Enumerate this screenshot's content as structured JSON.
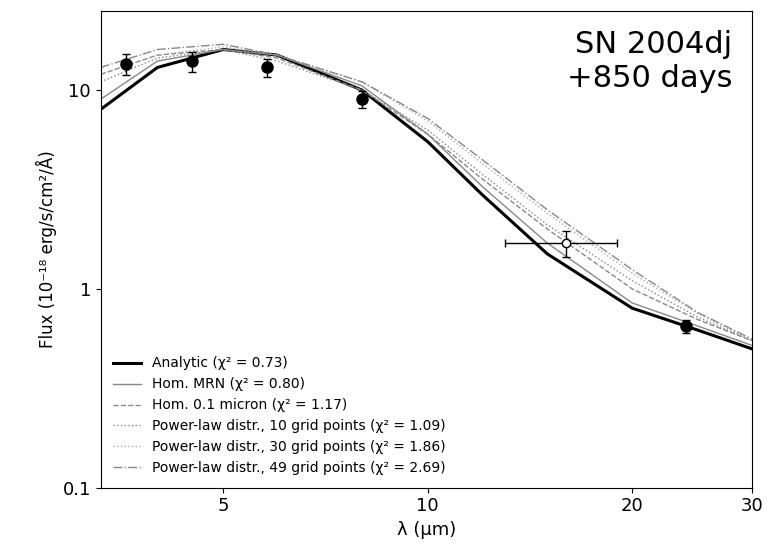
{
  "chart_data": {
    "type": "line",
    "annotation": "SN 2004dj\n+850 days",
    "x_label": "λ (μm)",
    "y_label": "Flux (10⁻¹⁸ erg/s/cm²/Å)",
    "log": true,
    "xlim": [
      3.3,
      30
    ],
    "xticks": [
      5,
      10,
      20,
      30
    ],
    "ylim": [
      0.1,
      25
    ],
    "yticks": [
      0.1,
      1,
      10
    ],
    "legend": "lower left",
    "x": [
      3.3,
      4,
      5,
      6,
      8,
      10,
      12,
      15,
      20,
      25,
      30
    ],
    "series": [
      {
        "name": "Analytic (χ² = 0.73)",
        "color": "#000000",
        "line_style": "solid",
        "values": [
          8,
          13,
          16,
          15,
          10,
          5.5,
          3.0,
          1.5,
          0.8,
          0.62,
          0.5
        ]
      },
      {
        "name": "Hom. MRN (χ² = 0.80)",
        "color": "#888888",
        "line_style": "solid",
        "values": [
          9,
          14,
          16,
          15,
          10.5,
          6.0,
          3.3,
          1.7,
          0.85,
          0.65,
          0.52
        ]
      },
      {
        "name": "Hom. 0.1 micron (χ² = 1.17)",
        "color": "#888888",
        "line_style": "dashed",
        "values": [
          12,
          15,
          16,
          14.5,
          10,
          6.0,
          3.6,
          2.0,
          1.0,
          0.7,
          0.55
        ]
      },
      {
        "name": "Power-law distr., 10 grid points (χ² = 1.09)",
        "color": "#888888",
        "line_style": "dotted",
        "values": [
          11,
          14.5,
          16,
          14,
          10,
          6.3,
          3.8,
          2.1,
          1.1,
          0.72,
          0.55
        ]
      },
      {
        "name": "Power-law distr., 30 grid points (χ² = 1.86)",
        "color": "#aaaaaa",
        "line_style": "dotted",
        "values": [
          12,
          15,
          16.5,
          15,
          11,
          7.0,
          4.3,
          2.4,
          1.2,
          0.75,
          0.55
        ]
      },
      {
        "name": "Power-law distr., 49 grid points (χ² = 2.69)",
        "color": "#888888",
        "line_style": "dashdot",
        "values": [
          13,
          16,
          17,
          15,
          11,
          7.2,
          4.5,
          2.5,
          1.25,
          0.76,
          0.56
        ]
      }
    ],
    "measurements": [
      {
        "marker": "filled",
        "color": "#000000",
        "x": [
          3.6,
          4.5,
          5.8,
          8.0,
          24
        ],
        "values": [
          13.5,
          14,
          13,
          9,
          0.65
        ],
        "yerr": [
          1.6,
          1.6,
          1.4,
          0.9,
          0.05
        ],
        "xerr_low": [
          0,
          0,
          0,
          0,
          0
        ],
        "xerr_high": [
          0,
          0,
          0,
          0,
          0
        ]
      },
      {
        "marker": "open",
        "color": "#000000",
        "x": [
          16
        ],
        "values": [
          1.7
        ],
        "yerr": [
          0.25
        ],
        "xerr_low": [
          3
        ],
        "xerr_high": [
          3
        ]
      }
    ]
  }
}
